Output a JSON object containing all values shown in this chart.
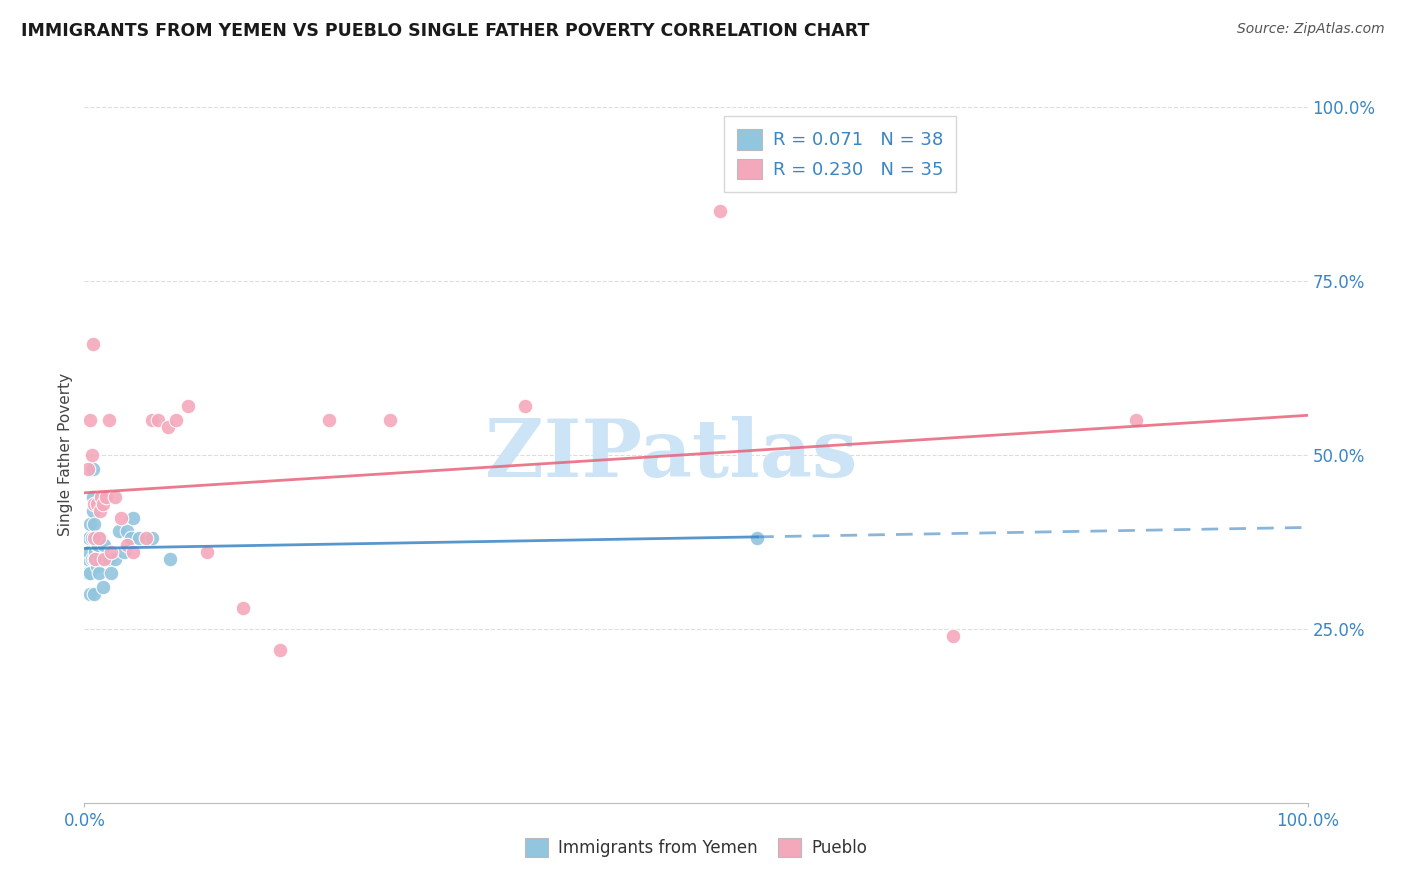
{
  "title": "IMMIGRANTS FROM YEMEN VS PUEBLO SINGLE FATHER POVERTY CORRELATION CHART",
  "source": "Source: ZipAtlas.com",
  "ylabel": "Single Father Poverty",
  "legend_label1": "Immigrants from Yemen",
  "legend_label2": "Pueblo",
  "R1": 0.071,
  "N1": 38,
  "R2": 0.23,
  "N2": 35,
  "blue_color": "#92c5de",
  "pink_color": "#f4a8bc",
  "blue_line_color": "#3a85c4",
  "pink_line_color": "#e8637a",
  "blue_scatter_edge": "white",
  "pink_scatter_edge": "white",
  "watermark": "ZIPatlas",
  "watermark_color": "#cce4f5",
  "grid_color": "#dddddd",
  "title_color": "#1a1a1a",
  "source_color": "#555555",
  "tick_color": "#3a85c4",
  "blue_x": [
    0.003,
    0.003,
    0.004,
    0.004,
    0.005,
    0.005,
    0.005,
    0.006,
    0.006,
    0.007,
    0.007,
    0.007,
    0.008,
    0.008,
    0.008,
    0.009,
    0.009,
    0.01,
    0.01,
    0.011,
    0.012,
    0.013,
    0.013,
    0.015,
    0.016,
    0.018,
    0.02,
    0.022,
    0.025,
    0.028,
    0.032,
    0.035,
    0.038,
    0.04,
    0.045,
    0.055,
    0.07,
    0.55
  ],
  "blue_y": [
    0.33,
    0.35,
    0.36,
    0.38,
    0.3,
    0.33,
    0.4,
    0.35,
    0.38,
    0.42,
    0.44,
    0.48,
    0.3,
    0.35,
    0.4,
    0.36,
    0.38,
    0.34,
    0.37,
    0.37,
    0.33,
    0.35,
    0.38,
    0.31,
    0.37,
    0.35,
    0.35,
    0.33,
    0.35,
    0.39,
    0.36,
    0.39,
    0.38,
    0.41,
    0.38,
    0.38,
    0.35,
    0.38
  ],
  "pink_x": [
    0.003,
    0.005,
    0.006,
    0.007,
    0.008,
    0.008,
    0.009,
    0.01,
    0.012,
    0.013,
    0.014,
    0.015,
    0.016,
    0.018,
    0.02,
    0.022,
    0.025,
    0.03,
    0.035,
    0.04,
    0.05,
    0.055,
    0.06,
    0.068,
    0.075,
    0.085,
    0.1,
    0.13,
    0.16,
    0.2,
    0.25,
    0.36,
    0.52,
    0.71,
    0.86
  ],
  "pink_y": [
    0.48,
    0.55,
    0.5,
    0.66,
    0.43,
    0.38,
    0.35,
    0.43,
    0.38,
    0.42,
    0.44,
    0.43,
    0.35,
    0.44,
    0.55,
    0.36,
    0.44,
    0.41,
    0.37,
    0.36,
    0.38,
    0.55,
    0.55,
    0.54,
    0.55,
    0.57,
    0.36,
    0.28,
    0.22,
    0.55,
    0.55,
    0.57,
    0.85,
    0.24,
    0.55
  ]
}
